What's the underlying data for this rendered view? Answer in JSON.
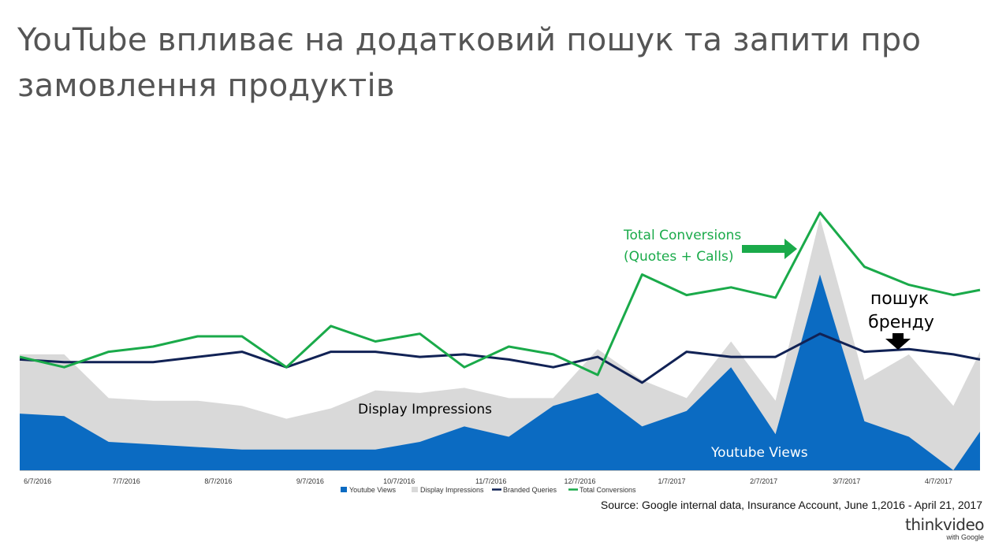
{
  "slide": {
    "title": "YouTube впливає на додатковий пошук та запити про замовлення продуктів",
    "source": "Source: Google internal data, Insurance Account, June 1,2016 - April 21, 2017",
    "logo_main": "thinkvideo",
    "logo_sub": "with Google"
  },
  "colors": {
    "youtube_views": "#0b6bc2",
    "display_impressions": "#d9d9d9",
    "branded_queries": "#112255",
    "total_conversions": "#1aaa4a",
    "arrow_green": "#1aaa4a",
    "arrow_black": "#000000"
  },
  "chart_data": {
    "type": "area",
    "y_axis": "none",
    "ylim": [
      0,
      100
    ],
    "grid": false,
    "legend": "bottom",
    "x_ticks": [
      "6/7/2016",
      "7/7/2016",
      "8/7/2016",
      "9/7/2016",
      "10/7/2016",
      "11/7/2016",
      "12/7/2016",
      "1/7/2017",
      "2/7/2017",
      "3/7/2017",
      "4/7/2017"
    ],
    "x": [
      "6/1/2016",
      "6/16/2016",
      "7/1/2016",
      "7/16/2016",
      "7/31/2016",
      "8/15/2016",
      "8/30/2016",
      "9/14/2016",
      "9/29/2016",
      "10/14/2016",
      "10/29/2016",
      "11/13/2016",
      "11/28/2016",
      "12/13/2016",
      "12/28/2016",
      "1/12/2017",
      "1/27/2017",
      "2/11/2017",
      "2/26/2017",
      "3/13/2017",
      "3/28/2017",
      "4/12/2017",
      "4/21/2017"
    ],
    "series": [
      {
        "name": "Youtube Views",
        "values": [
          22,
          21,
          11,
          10,
          9,
          8,
          8,
          8,
          8,
          11,
          17,
          13,
          25,
          30,
          17,
          23,
          40,
          14,
          76,
          19,
          13,
          0,
          15
        ]
      },
      {
        "name": "Display Impressions",
        "values": [
          45,
          45,
          28,
          27,
          27,
          25,
          20,
          24,
          31,
          30,
          32,
          28,
          28,
          47,
          35,
          28,
          50,
          27,
          98,
          35,
          45,
          25,
          46
        ]
      },
      {
        "name": "Branded Queries",
        "values": [
          43,
          42,
          42,
          42,
          44,
          46,
          40,
          46,
          46,
          44,
          45,
          43,
          40,
          44,
          34,
          46,
          44,
          44,
          53,
          46,
          47,
          45,
          43
        ]
      },
      {
        "name": "Total Conversions",
        "values": [
          44,
          40,
          46,
          48,
          52,
          52,
          40,
          56,
          50,
          53,
          40,
          48,
          45,
          37,
          76,
          68,
          71,
          67,
          100,
          79,
          72,
          68,
          70
        ]
      }
    ],
    "annotations": [
      {
        "text_line1": "Total Conversions",
        "text_line2": "(Quotes + Calls)",
        "color": "#1aaa4a"
      },
      {
        "text": "Display Impressions",
        "color": "#000000"
      },
      {
        "text": "Youtube Views",
        "color": "#ffffff"
      },
      {
        "text_line1": "пошук",
        "text_line2": "бренду",
        "color": "#000000"
      }
    ]
  }
}
